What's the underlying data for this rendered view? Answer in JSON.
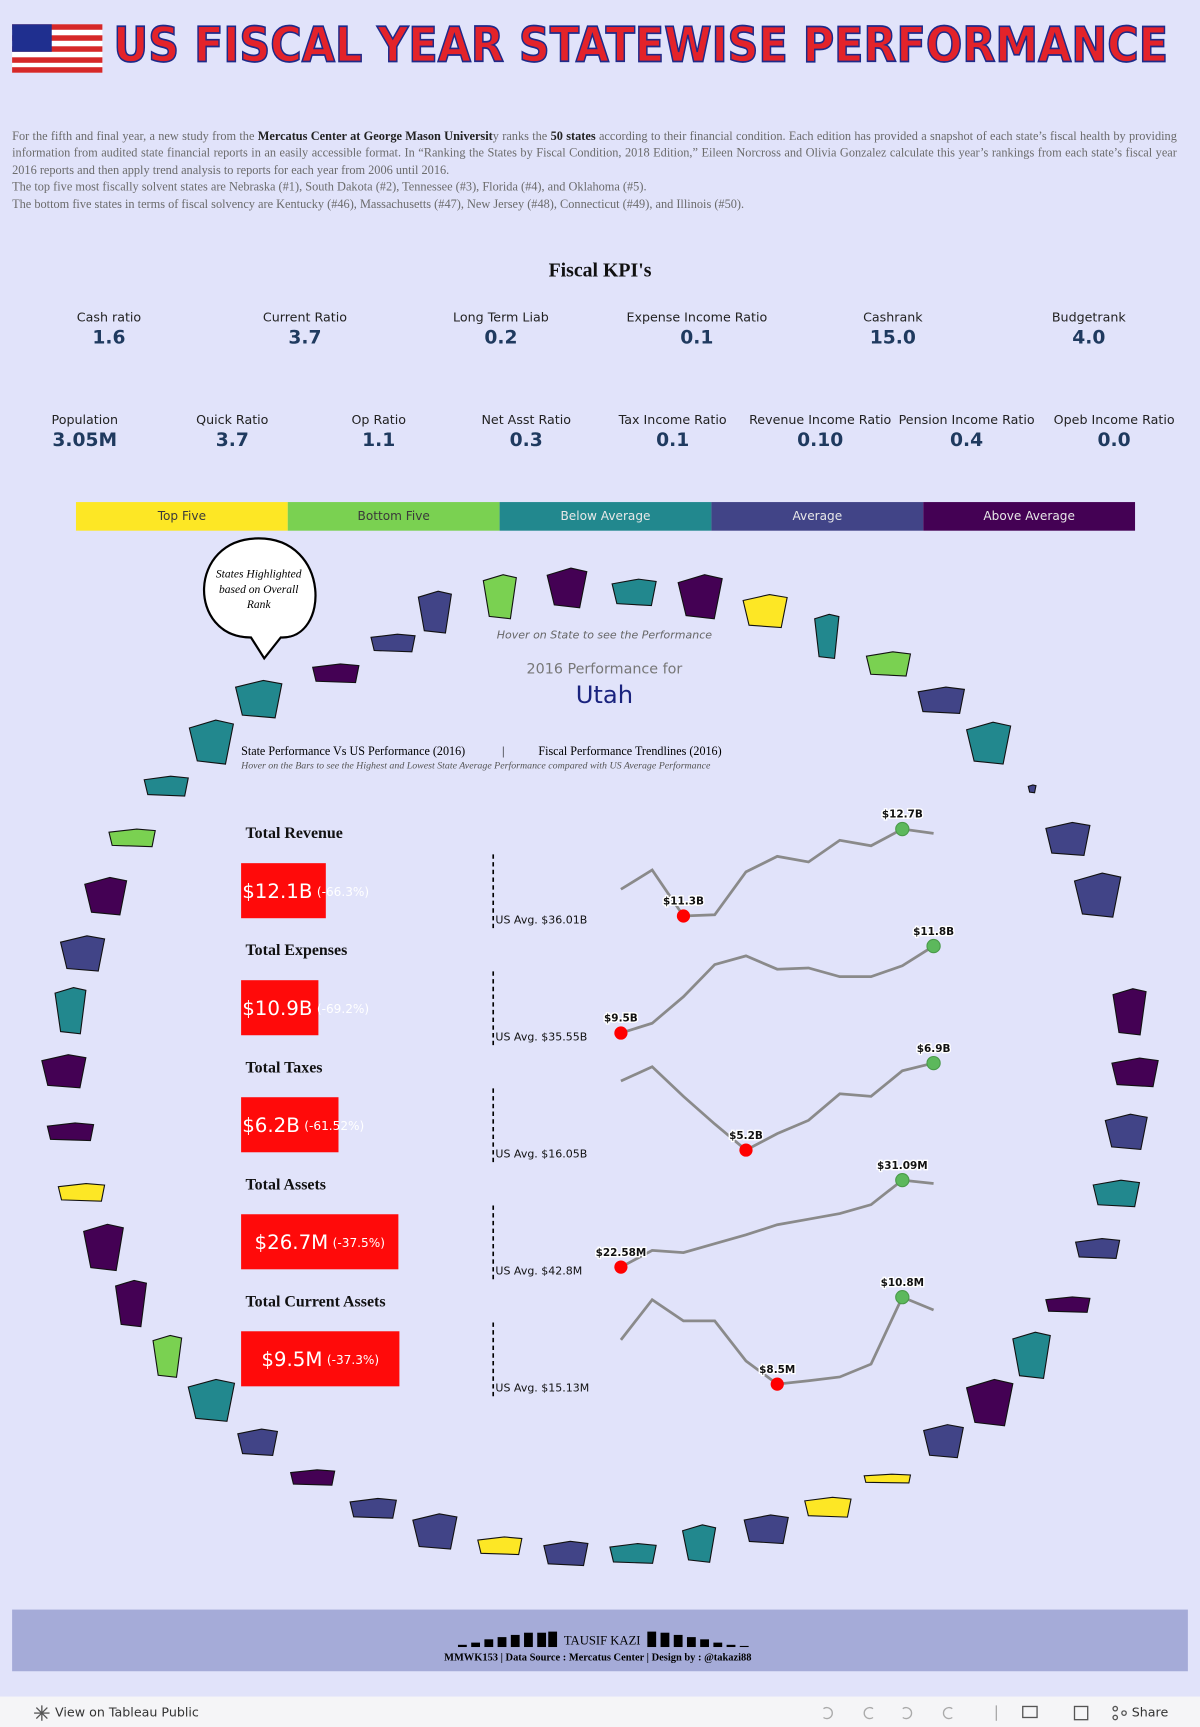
{
  "header": {
    "title": "US FISCAL YEAR STATEWISE PERFORMANCE"
  },
  "intro": {
    "paragraphs": [
      [
        "For the fifth and final year, a new study from the ",
        {
          "text": "Mercatus Center at George Mason Universit",
          "bold": true
        },
        "y ranks the ",
        {
          "text": "50 states",
          "bold": true
        },
        " according to their financial condition. Each edition has provided a snapshot of each state’s fiscal health by providing information from audited state financial reports in an easily accessible format. In “Ranking the States by Fiscal Condition, 2018 Edition,” Eileen Norcross and Olivia Gonzalez calculate this year’s rankings from each state’s fiscal year 2016 reports and then apply trend analysis to reports for each year from 2006 until 2016."
      ],
      [
        "The top five most fiscally solvent states are Nebraska (#1), South Dakota (#2), Tennessee (#3), Florida (#4), and Oklahoma (#5)."
      ],
      [
        "The bottom five states in terms of fiscal solvency are Kentucky (#46), Massachusetts (#47), New Jersey (#48), Connecticut (#49), and Illinois (#50)."
      ]
    ]
  },
  "kpis": {
    "title": "Fiscal KPI's",
    "rows": [
      [
        {
          "label": "Cash ratio",
          "value": "1.6"
        },
        {
          "label": "Current Ratio",
          "value": "3.7"
        },
        {
          "label": "Long Term Liab",
          "value": "0.2"
        },
        {
          "label": "Expense Income Ratio",
          "value": "0.1"
        },
        {
          "label": "Cashrank",
          "value": "15.0"
        },
        {
          "label": "Budgetrank",
          "value": "4.0"
        }
      ],
      [
        {
          "label": "Population",
          "value": "3.05M"
        },
        {
          "label": "Quick Ratio",
          "value": "3.7"
        },
        {
          "label": "Op Ratio",
          "value": "1.1"
        },
        {
          "label": "Net Asst Ratio",
          "value": "0.3"
        },
        {
          "label": "Tax Income Ratio",
          "value": "0.1"
        },
        {
          "label": "Revenue Income Ratio",
          "value": "0.10"
        },
        {
          "label": "Pension Income Ratio",
          "value": "0.4"
        },
        {
          "label": "Opeb Income Ratio",
          "value": "0.0"
        }
      ]
    ]
  },
  "legend": [
    {
      "name": "Top Five",
      "color": "#fde725",
      "text_color": "#3a3a3a"
    },
    {
      "name": "Bottom Five",
      "color": "#7ad151",
      "text_color": "#3a3a3a"
    },
    {
      "name": "Below Average",
      "color": "#22888e",
      "text_color": "#e8e8e8"
    },
    {
      "name": "Average",
      "color": "#414487",
      "text_color": "#e8e8e8"
    },
    {
      "name": "Above Average",
      "color": "#440154",
      "text_color": "#e8e8e8"
    }
  ],
  "callout": [
    "States Highlighted",
    "based on Overall",
    "Rank"
  ],
  "hover_note": "Hover on State to see the Performance",
  "performance_for": "2016 Performance for",
  "state": "Utah",
  "section_left": "State Performance Vs US Performance (2016)",
  "section_sep": "|",
  "section_right": "Fiscal Performance Trendlines (2016)",
  "section_note": "Hover on the Bars to see the Highest and Lowest State Average Performance compared with US Average Performance",
  "metrics": [
    {
      "name": "Total Revenue",
      "value": 12.1,
      "value_label": "$12.1B",
      "change": -66.3,
      "change_label": "(-66.3%)",
      "us_avg": 36.01,
      "us_avg_label": "US Avg. $36.01B",
      "trend": [
        11.73,
        12.04,
        11.3,
        11.32,
        12.01,
        12.26,
        12.17,
        12.52,
        12.43,
        12.7,
        12.63
      ],
      "trend_labels": [
        null,
        null,
        "$11.3B",
        null,
        null,
        null,
        null,
        null,
        null,
        "$12.7B",
        null
      ]
    },
    {
      "name": "Total Expenses",
      "value": 10.9,
      "value_label": "$10.9B",
      "change": -69.2,
      "change_label": "(-69.2%)",
      "us_avg": 35.55,
      "us_avg_label": "US Avg. $35.55B",
      "trend": [
        9.5,
        9.76,
        10.46,
        11.31,
        11.54,
        11.19,
        11.22,
        10.99,
        10.99,
        11.28,
        11.8
      ],
      "trend_labels": [
        "$9.5B",
        null,
        null,
        null,
        null,
        null,
        null,
        null,
        null,
        null,
        "$11.8B"
      ]
    },
    {
      "name": "Total Taxes",
      "value": 6.2,
      "value_label": "$6.2B",
      "change": -61.52,
      "change_label": "(-61.52%)",
      "us_avg": 16.05,
      "us_avg_label": "US Avg. $16.05B",
      "trend": [
        6.55,
        6.83,
        6.25,
        5.71,
        5.2,
        5.52,
        5.78,
        6.3,
        6.25,
        6.75,
        6.9
      ],
      "trend_labels": [
        null,
        null,
        null,
        null,
        "$5.2B",
        null,
        null,
        null,
        null,
        null,
        "$6.9B"
      ]
    },
    {
      "name": "Total Assets",
      "value": 26.7,
      "value_label": "$26.7M",
      "change": -37.5,
      "change_label": "(-37.5%)",
      "us_avg": 42.8,
      "us_avg_label": "US Avg. $42.8M",
      "trend": [
        22.58,
        24.22,
        24.0,
        24.87,
        25.74,
        26.73,
        27.27,
        27.82,
        28.69,
        31.09,
        30.76
      ],
      "trend_labels": [
        "$22.58M",
        null,
        null,
        null,
        null,
        null,
        null,
        null,
        null,
        "$31.09M",
        null
      ]
    },
    {
      "name": "Total Current Assets",
      "value": 9.5,
      "value_label": "$9.5M",
      "change": -37.3,
      "change_label": "(-37.3%)",
      "us_avg": 15.13,
      "us_avg_label": "US Avg. $15.13M",
      "trend": [
        9.67,
        10.73,
        10.17,
        10.17,
        9.11,
        8.5,
        8.59,
        8.69,
        9.03,
        10.8,
        10.46
      ],
      "trend_labels": [
        null,
        null,
        null,
        null,
        null,
        "$8.5M",
        null,
        null,
        null,
        "$10.8M",
        null
      ]
    }
  ],
  "footer": {
    "author": "TAUSIF KAZI",
    "credits": "MMWK153 | Data Source : Mercatus Center | Design by : @takazi88"
  },
  "toolbar": {
    "link": "View on Tableau Public",
    "share": "Share"
  }
}
